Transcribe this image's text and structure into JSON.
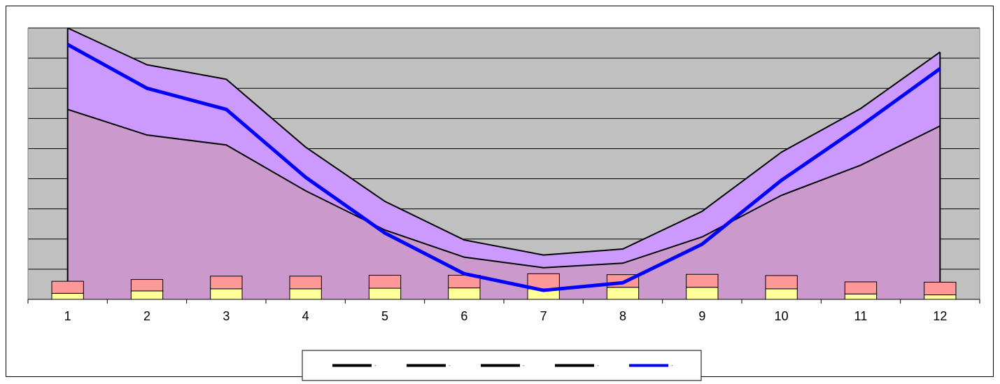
{
  "chart_data": {
    "type": "area",
    "categories": [
      "1",
      "2",
      "3",
      "4",
      "5",
      "6",
      "7",
      "8",
      "9",
      "10",
      "11",
      "12"
    ],
    "ylim": [
      0,
      9
    ],
    "grid": true,
    "legend_position": "bottom",
    "stacked_bars": {
      "bottom": [
        0.2,
        0.28,
        0.35,
        0.35,
        0.37,
        0.38,
        0.35,
        0.4,
        0.4,
        0.35,
        0.18,
        0.15
      ],
      "top": [
        0.4,
        0.38,
        0.42,
        0.42,
        0.43,
        0.42,
        0.5,
        0.42,
        0.43,
        0.44,
        0.4,
        0.42
      ]
    },
    "areas": {
      "lower_boundary": [
        6.3,
        5.45,
        5.12,
        3.6,
        2.3,
        1.4,
        1.05,
        1.2,
        2.07,
        3.45,
        4.45,
        5.75
      ],
      "upper_boundary": [
        9.0,
        7.78,
        7.3,
        5.05,
        3.25,
        1.97,
        1.47,
        1.67,
        2.92,
        4.88,
        6.33,
        8.2
      ]
    },
    "blue_line": [
      8.45,
      7.0,
      6.3,
      4.05,
      2.2,
      0.85,
      0.3,
      0.55,
      1.83,
      3.95,
      5.75,
      7.65
    ],
    "legend": [
      {
        "symbol": "black-line",
        "color": "#000000",
        "label": "-"
      },
      {
        "symbol": "black-line",
        "color": "#000000",
        "label": "-"
      },
      {
        "symbol": "black-line",
        "color": "#000000",
        "label": "-"
      },
      {
        "symbol": "black-line",
        "color": "#000000",
        "label": "-"
      },
      {
        "symbol": "blue-line",
        "color": "#0000ff",
        "label": "-"
      }
    ],
    "colors": {
      "plot_bg": "#c0c0c0",
      "lower_area": "#cc99cc",
      "upper_area": "#cc99ff",
      "blue_line": "#0000ff",
      "bar_bottom": "#ffff99",
      "bar_top": "#ff9999"
    }
  }
}
